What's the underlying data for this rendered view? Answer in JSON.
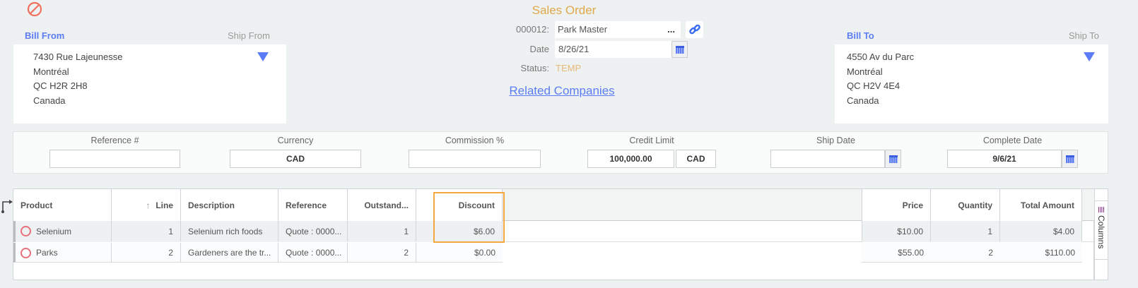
{
  "header": {
    "title": "Sales Order",
    "order_number": "000012:",
    "customer": "Park Master",
    "ellipsis": "...",
    "date_label": "Date",
    "date": "8/26/21",
    "status_label": "Status:",
    "status": "TEMP",
    "related_link": "Related Companies"
  },
  "bill_from": {
    "tab_active": "Bill From",
    "tab_inactive": "Ship From",
    "lines": [
      "7430 Rue Lajeunesse",
      "Montréal",
      "QC H2R 2H8",
      "Canada"
    ]
  },
  "bill_to": {
    "tab_active": "Bill To",
    "tab_inactive": "Ship To",
    "lines": [
      "4550 Av du Parc",
      "Montréal",
      "QC H2V 4E4",
      "Canada"
    ]
  },
  "fields": {
    "reference_label": "Reference #",
    "reference": "",
    "currency_label": "Currency",
    "currency": "CAD",
    "commission_label": "Commission %",
    "commission": "",
    "credit_limit_label": "Credit Limit",
    "credit_limit": "100,000.00",
    "credit_currency": "CAD",
    "ship_date_label": "Ship Date",
    "ship_date": "",
    "complete_date_label": "Complete Date",
    "complete_date": "9/6/21"
  },
  "grid": {
    "columns": {
      "product": "Product",
      "line": "Line",
      "description": "Description",
      "reference": "Reference",
      "outstanding": "Outstand...",
      "discount": "Discount",
      "price": "Price",
      "quantity": "Quantity",
      "total": "Total Amount"
    },
    "sort_indicator": "↑",
    "rows": [
      {
        "product": "Selenium",
        "line": "1",
        "description": "Selenium rich foods",
        "reference": "Quote : 0000...",
        "outstanding": "1",
        "discount": "$6.00",
        "price": "$10.00",
        "quantity": "1",
        "total": "$4.00"
      },
      {
        "product": "Parks",
        "line": "2",
        "description": "Gardeners are the tr...",
        "reference": "Quote : 0000...",
        "outstanding": "2",
        "discount": "$0.00",
        "price": "$55.00",
        "quantity": "2",
        "total": "$110.00"
      }
    ],
    "columns_panel": "Columns"
  },
  "colors": {
    "accent": "#5b7cf5",
    "title": "#e0a84a",
    "highlight": "#f5a742",
    "status_icon": "#e8707a"
  }
}
